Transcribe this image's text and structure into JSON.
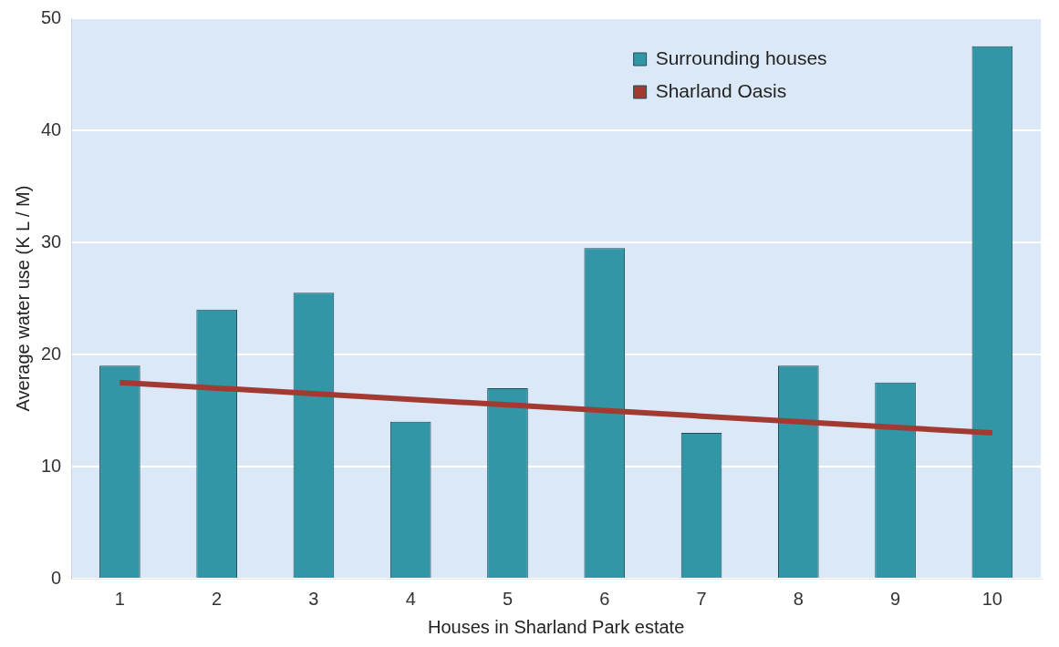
{
  "chart_data": {
    "type": "bar",
    "xlabel": "Houses in Sharland Park estate",
    "ylabel": "Average water use (K L / M)",
    "categories": [
      "1",
      "2",
      "3",
      "4",
      "5",
      "6",
      "7",
      "8",
      "9",
      "10"
    ],
    "series": [
      {
        "name": "Surrounding houses",
        "color": "#3296a6",
        "values": [
          19,
          24,
          25.5,
          14,
          17,
          29.5,
          13,
          19,
          17.5,
          47.5
        ]
      },
      {
        "name": "Sharland Oasis",
        "type": "line",
        "color": "#a23a32",
        "values": [
          17.5,
          17,
          16.5,
          16,
          15.5,
          15,
          14.5,
          14,
          13.5,
          13
        ]
      }
    ],
    "ylim": [
      0,
      50
    ],
    "yticks": [
      0,
      10,
      20,
      30,
      40,
      50
    ],
    "grid": "y",
    "legend": "top right",
    "marker": "none"
  }
}
